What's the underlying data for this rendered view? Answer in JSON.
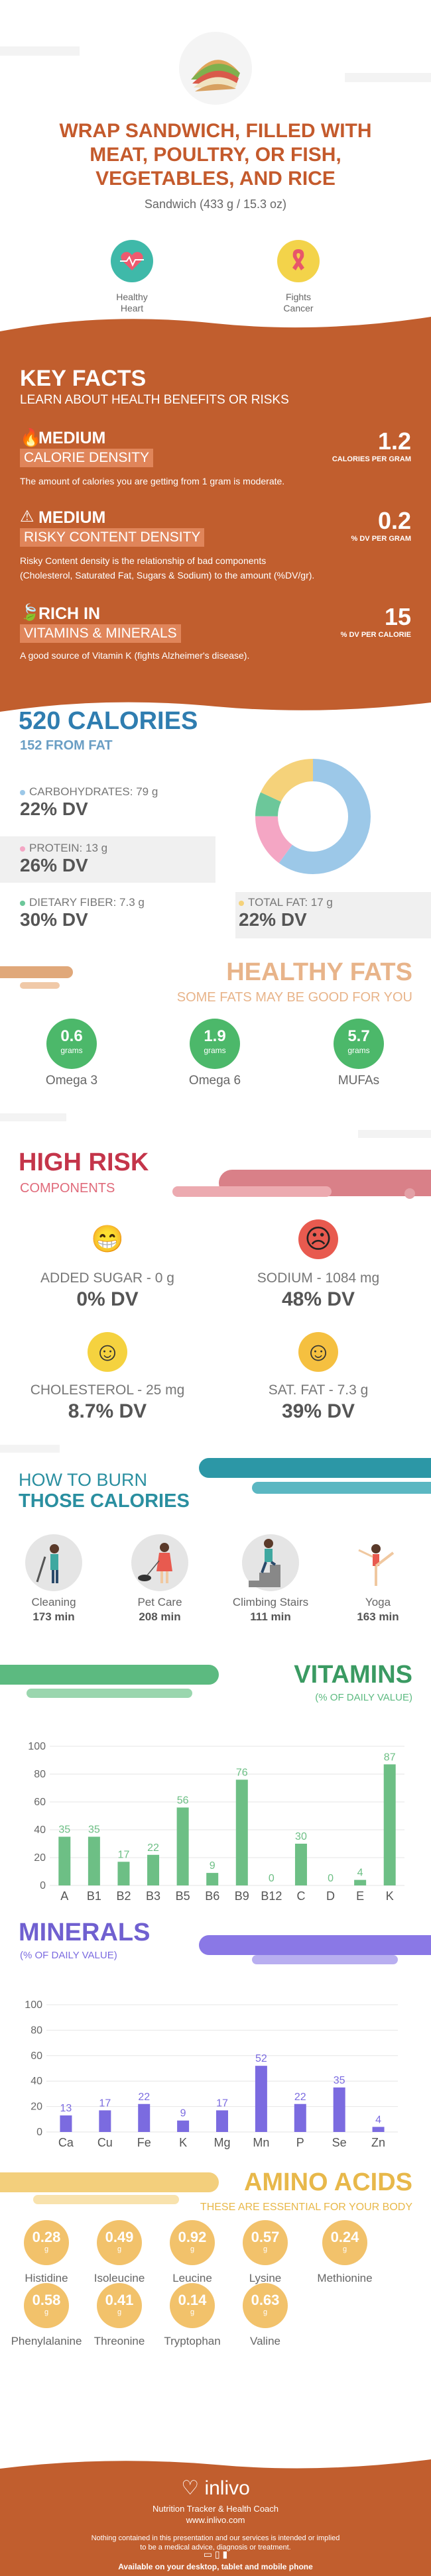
{
  "header": {
    "title_line1": "WRAP SANDWICH, FILLED WITH",
    "title_line2": "MEAT, POULTRY, OR FISH,",
    "title_line3": "VEGETABLES, AND RICE",
    "subtitle": "Sandwich (433 g / 15.3 oz)"
  },
  "badges": [
    {
      "label1": "Healthy",
      "label2": "Heart",
      "icon": "heart-pulse-icon",
      "color": "#3fb9a9"
    },
    {
      "label1": "Fights",
      "label2": "Cancer",
      "icon": "ribbon-icon",
      "color": "#f3d34a"
    }
  ],
  "key_facts": {
    "title": "KEY FACTS",
    "subtitle": "LEARN ABOUT HEALTH BENEFITS OR RISKS",
    "items": [
      {
        "level": "MEDIUM",
        "name": "CALORIE DENSITY",
        "value": "1.2",
        "unit": "CALORIES PER GRAM",
        "desc": "The amount of calories you are getting from 1 gram is moderate.",
        "icon": "flame-icon"
      },
      {
        "level": "MEDIUM",
        "name": "RISKY CONTENT DENSITY",
        "value": "0.2",
        "unit": "% DV PER GRAM",
        "desc1": "Risky Content density is the relationship of bad components",
        "desc2": "(Cholesterol, Saturated Fat, Sugars & Sodium) to the amount (%DV/gr).",
        "icon": "warning-icon"
      },
      {
        "level": "RICH  IN",
        "name": "VITAMINS & MINERALS",
        "value": "15",
        "unit": "% DV PER CALORIE",
        "desc": "A good source of Vitamin K (fights Alzheimer's disease).",
        "icon": "leaf-icon"
      }
    ]
  },
  "calories": {
    "title": "520 CALORIES",
    "from_fat": "152 FROM FAT",
    "nutrients": [
      {
        "label": "CARBOHYDRATES: 79 g",
        "dv": "22% DV",
        "color": "#9cc8e8"
      },
      {
        "label": "PROTEIN: 13 g",
        "dv": "26% DV",
        "color": "#f4a6c4"
      },
      {
        "label": "DIETARY FIBER: 7.3 g",
        "dv": "30% DV",
        "color": "#6cc79a"
      },
      {
        "label": "TOTAL FAT: 17 g",
        "dv": "22% DV",
        "color": "#f5d27a"
      }
    ]
  },
  "healthy_fats": {
    "title": "HEALTHY FATS",
    "subtitle": "SOME FATS MAY BE GOOD FOR YOU",
    "items": [
      {
        "value": "0.6",
        "unit": "grams",
        "label": "Omega 3"
      },
      {
        "value": "1.9",
        "unit": "grams",
        "label": "Omega 6"
      },
      {
        "value": "5.7",
        "unit": "grams",
        "label": "MUFAs"
      }
    ]
  },
  "high_risk": {
    "title": "HIGH RISK",
    "subtitle": "COMPONENTS",
    "items": [
      {
        "label": "ADDED SUGAR - 0 g",
        "dv": "0% DV",
        "face": "😁",
        "color": "#f5d23f"
      },
      {
        "label": "SODIUM - 1084 mg",
        "dv": "48% DV",
        "face": "☹",
        "color": "#e85a4f"
      },
      {
        "label": "CHOLESTEROL - 25 mg",
        "dv": "8.7% DV",
        "face": "☺",
        "color": "#f5d23f"
      },
      {
        "label": "SAT. FAT - 7.3 g",
        "dv": "39% DV",
        "face": "☺",
        "color": "#f5c040"
      }
    ]
  },
  "burn": {
    "title1": "HOW TO BURN",
    "title2": "THOSE CALORIES",
    "items": [
      {
        "label": "Cleaning",
        "value": "173 min"
      },
      {
        "label": "Pet Care",
        "value": "208 min"
      },
      {
        "label": "Climbing Stairs",
        "value": "111 min"
      },
      {
        "label": "Yoga",
        "value": "163 min"
      }
    ]
  },
  "vitamins": {
    "title": "VITAMINS",
    "subtitle": "(% OF DAILY VALUE)"
  },
  "minerals": {
    "title": "MINERALS",
    "subtitle": "(% OF DAILY VALUE)"
  },
  "chart_data": [
    {
      "type": "bar",
      "categories": [
        "A",
        "B1",
        "B2",
        "B3",
        "B5",
        "B6",
        "B9",
        "B12",
        "C",
        "D",
        "E",
        "K"
      ],
      "values": [
        35,
        35,
        17,
        22,
        56,
        9,
        76,
        0,
        30,
        0,
        4,
        87
      ],
      "ylim": [
        0,
        100
      ],
      "yticks": [
        0,
        20,
        40,
        60,
        80,
        100
      ],
      "color": "#6dbf85",
      "grid": true
    },
    {
      "type": "bar",
      "categories": [
        "Ca",
        "Cu",
        "Fe",
        "K",
        "Mg",
        "Mn",
        "P",
        "Se",
        "Zn"
      ],
      "values": [
        13,
        17,
        22,
        9,
        17,
        52,
        22,
        35,
        4
      ],
      "ylim": [
        0,
        100
      ],
      "yticks": [
        0,
        20,
        40,
        60,
        80,
        100
      ],
      "color": "#7b6be0",
      "grid": true
    }
  ],
  "amino": {
    "title": "AMINO ACIDS",
    "subtitle": "THESE ARE ESSENTIAL FOR YOUR BODY",
    "unit": "g",
    "items": [
      {
        "value": "0.28",
        "label": "Histidine"
      },
      {
        "value": "0.49",
        "label": "Isoleucine"
      },
      {
        "value": "0.92",
        "label": "Leucine"
      },
      {
        "value": "0.57",
        "label": "Lysine"
      },
      {
        "value": "0.24",
        "label": "Methionine"
      },
      {
        "value": "0.58",
        "label": "Phenylalanine"
      },
      {
        "value": "0.41",
        "label": "Threonine"
      },
      {
        "value": "0.14",
        "label": "Tryptophan"
      },
      {
        "value": "0.63",
        "label": "Valine"
      }
    ]
  },
  "footer": {
    "brand": "inlivo",
    "tagline": "Nutrition Tracker & Health Coach",
    "url": "www.inlivo.com",
    "disclaimer1": "Nothing contained in this presentation and our services is intended or implied",
    "disclaimer2": "to be a medical advice, diagnosis or treatment.",
    "available": "Available on your desktop, tablet and mobile phone"
  }
}
